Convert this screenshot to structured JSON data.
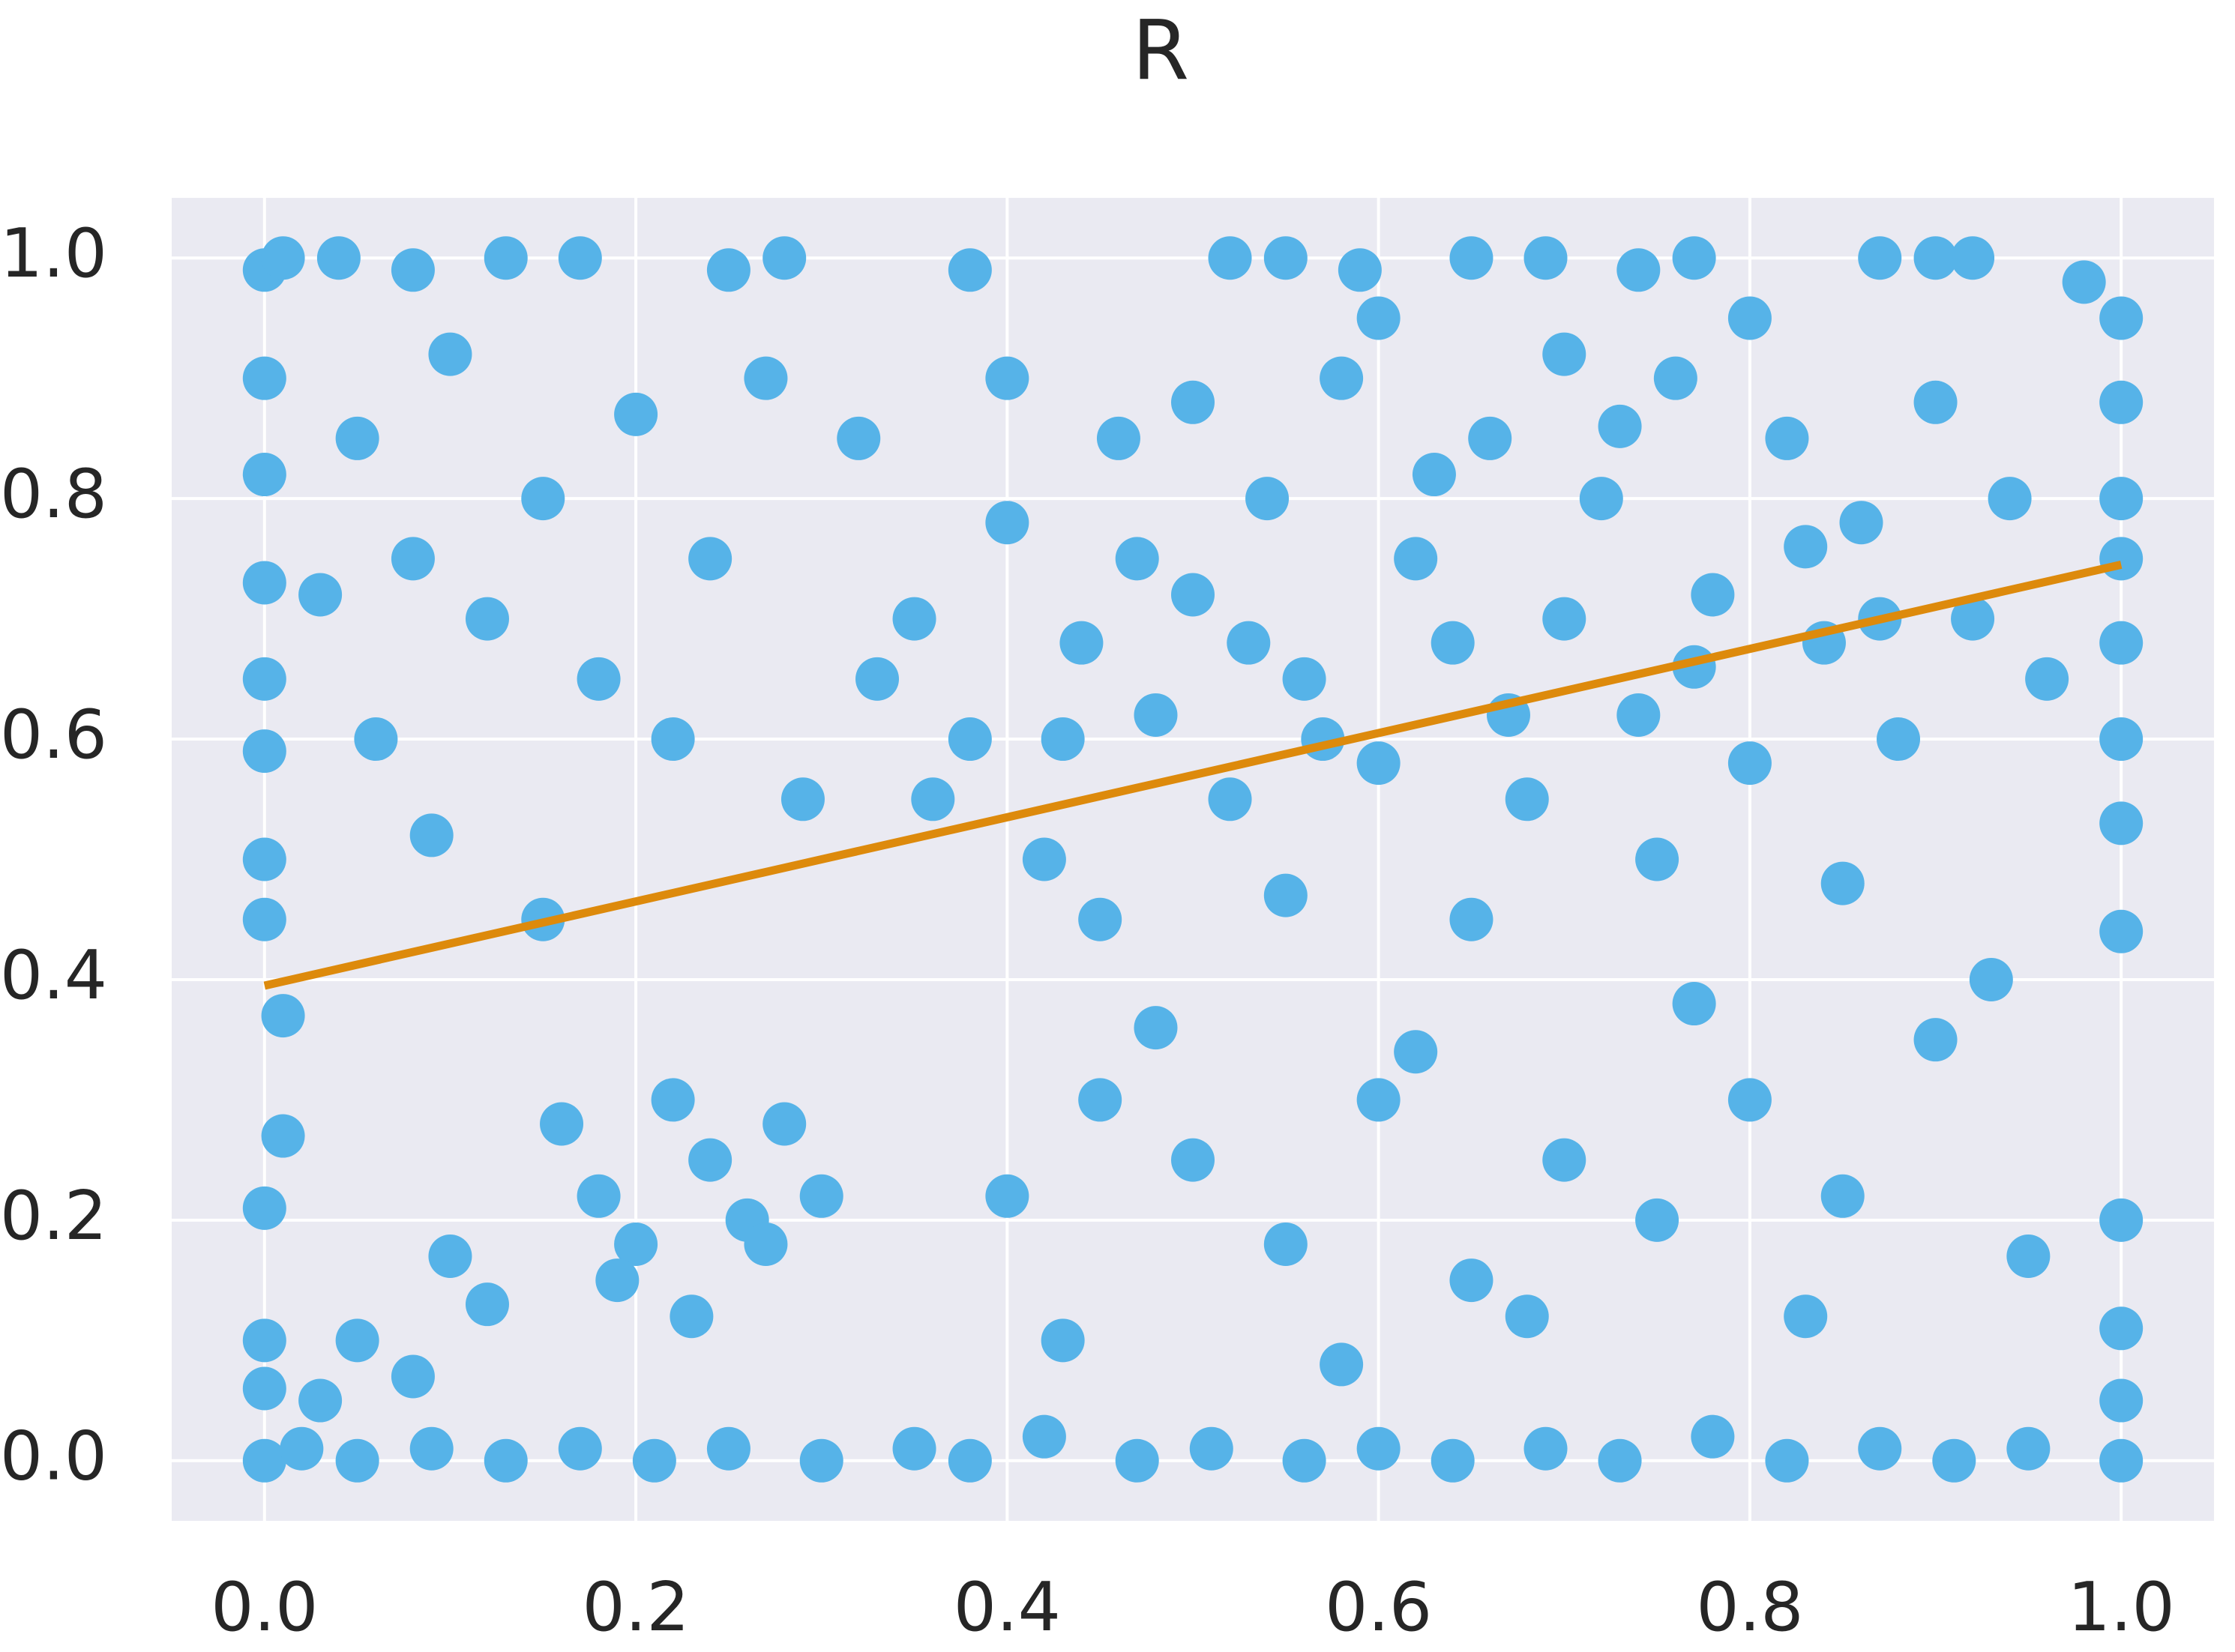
{
  "chart_data": {
    "type": "scatter",
    "title": "R",
    "xlim": [
      -0.05,
      1.05
    ],
    "ylim": [
      -0.05,
      1.05
    ],
    "xticks": [
      {
        "value": 0,
        "label": "0.0"
      },
      0.2,
      0.4,
      0.6,
      0.8,
      {
        "value": 1,
        "label": "1.0"
      }
    ],
    "yticks": [
      {
        "value": 0,
        "label": "0.0"
      },
      0.2,
      0.4,
      0.6,
      0.8,
      {
        "value": 1,
        "label": "1.0"
      }
    ],
    "grid": true,
    "series": [
      {
        "color": "#56b3e8",
        "x": [
          0,
          0.02,
          0.05,
          0.09,
          0.13,
          0.17,
          0.21,
          0.25,
          0.3,
          0.35,
          0.38,
          0.42,
          0.47,
          0.51,
          0.56,
          0.6,
          0.64,
          0.69,
          0.73,
          0.78,
          0.82,
          0.87,
          0.91,
          0.95,
          1,
          1,
          0,
          0.01,
          0.04,
          0.08,
          0.13,
          0.17,
          0.25,
          0.28,
          0.38,
          0.52,
          0.55,
          0.59,
          0.65,
          0.69,
          0.74,
          0.77,
          0.87,
          0.9,
          0.92,
          0.98,
          0,
          0,
          0,
          0,
          0,
          0,
          0,
          0.01,
          0.01,
          0,
          0,
          0,
          1,
          1,
          1,
          1,
          1,
          1,
          1,
          1,
          1,
          1,
          0.16,
          0.18,
          0.2,
          0.22,
          0.24,
          0.26,
          0.28,
          0.3,
          0.19,
          0.23,
          0.27,
          0.12,
          0.1,
          0.08,
          0.05,
          0.03,
          0.4,
          0.45,
          0.5,
          0.55,
          0.6,
          0.65,
          0.7,
          0.75,
          0.8,
          0.85,
          0.9,
          0.95,
          0.43,
          0.58,
          0.68,
          0.83,
          0.48,
          0.62,
          0.77,
          0.93,
          0.05,
          0.08,
          0.1,
          0.12,
          0.15,
          0.18,
          0.2,
          0.22,
          0.24,
          0.27,
          0.29,
          0.06,
          0.09,
          0.15,
          0.03,
          0.32,
          0.35,
          0.38,
          0.4,
          0.42,
          0.44,
          0.46,
          0.48,
          0.5,
          0.52,
          0.54,
          0.56,
          0.58,
          0.6,
          0.62,
          0.64,
          0.66,
          0.68,
          0.7,
          0.72,
          0.74,
          0.76,
          0.78,
          0.8,
          0.82,
          0.84,
          0.86,
          0.88,
          0.9,
          0.92,
          0.94,
          0.96,
          0.36,
          0.45,
          0.55,
          0.65,
          0.75,
          0.85,
          0.6,
          0.7,
          0.8,
          0.5,
          0.4,
          0.33,
          0.57,
          0.67,
          0.77,
          0.87,
          0.63,
          0.73,
          0.83,
          0.53,
          0.43,
          0.47
        ],
        "values": [
          0,
          0.01,
          0,
          0.01,
          0,
          0.01,
          0,
          0.01,
          0,
          0.01,
          0,
          0.02,
          0,
          0.01,
          0,
          0.01,
          0,
          0.01,
          0,
          0.02,
          0,
          0.01,
          0,
          0.01,
          0,
          0.05,
          0.99,
          1,
          1,
          0.99,
          1,
          1,
          0.99,
          1,
          0.99,
          1,
          1,
          0.99,
          1,
          1,
          0.99,
          1,
          1,
          1,
          1,
          0.98,
          0.9,
          0.82,
          0.73,
          0.65,
          0.59,
          0.5,
          0.45,
          0.37,
          0.27,
          0.21,
          0.1,
          0.06,
          0.95,
          0.88,
          0.8,
          0.75,
          0.68,
          0.6,
          0.53,
          0.44,
          0.2,
          0.11,
          0.28,
          0.22,
          0.18,
          0.3,
          0.25,
          0.2,
          0.28,
          0.22,
          0.15,
          0.12,
          0.18,
          0.13,
          0.17,
          0.07,
          0.1,
          0.05,
          0.22,
          0.3,
          0.25,
          0.18,
          0.3,
          0.15,
          0.25,
          0.2,
          0.3,
          0.22,
          0.35,
          0.17,
          0.1,
          0.08,
          0.12,
          0.12,
          0.36,
          0.34,
          0.38,
          0.4,
          0.85,
          0.75,
          0.92,
          0.7,
          0.8,
          0.65,
          0.87,
          0.6,
          0.75,
          0.9,
          0.55,
          0.6,
          0.52,
          0.45,
          0.72,
          0.85,
          0.7,
          0.6,
          0.78,
          0.5,
          0.68,
          0.85,
          0.62,
          0.72,
          0.55,
          0.8,
          0.65,
          0.9,
          0.58,
          0.75,
          0.68,
          0.85,
          0.55,
          0.7,
          0.8,
          0.62,
          0.9,
          0.72,
          0.58,
          0.85,
          0.68,
          0.78,
          0.6,
          0.88,
          0.7,
          0.8,
          0.65,
          0.55,
          0.45,
          0.47,
          0.45,
          0.5,
          0.48,
          0.95,
          0.92,
          0.95,
          0.88,
          0.9,
          0.65,
          0.6,
          0.62,
          0.66,
          0.7,
          0.82,
          0.86,
          0.76,
          0.68,
          0.6,
          0.75
        ]
      },
      {
        "type": "line",
        "color": "#dd8a0c",
        "x": [
          0,
          1
        ],
        "values": [
          0.395,
          0.745
        ]
      }
    ]
  }
}
